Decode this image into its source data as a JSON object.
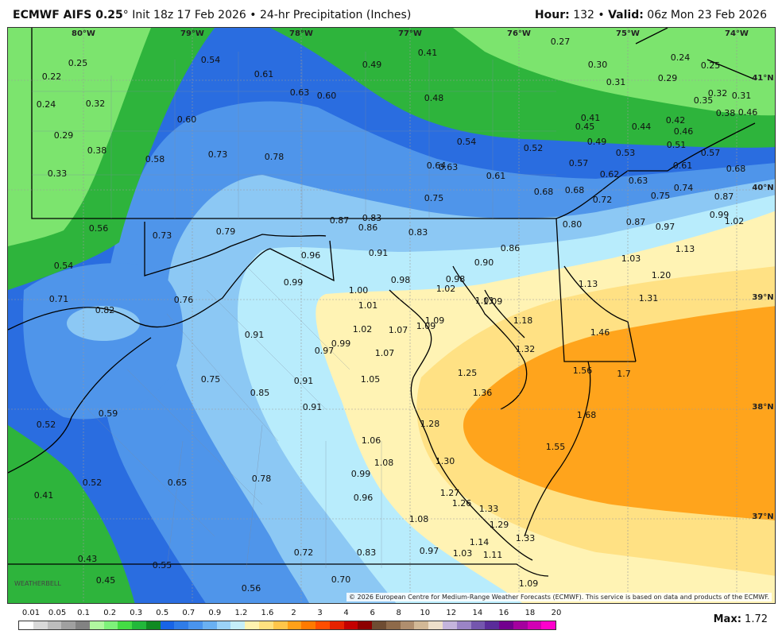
{
  "header": {
    "model": "ECMWF AIFS 0.25",
    "degree": "°",
    "init": "Init 18z 17 Feb 2026",
    "sep": "•",
    "product": "24-hr Precipitation (Inches)",
    "hour_label": "Hour:",
    "hour": "132",
    "valid_label": "Valid:",
    "valid": "06z Mon 23 Feb 2026"
  },
  "map": {
    "lon_ticks": [
      "80°W",
      "79°W",
      "78°W",
      "77°W",
      "76°W",
      "75°W",
      "74°W"
    ],
    "lat_ticks": [
      "41°N",
      "40°N",
      "39°N",
      "38°N",
      "37°N"
    ],
    "values": [
      [
        "0.22",
        55,
        62
      ],
      [
        "0.25",
        88,
        45
      ],
      [
        "0.24",
        48,
        97
      ],
      [
        "0.32",
        110,
        96
      ],
      [
        "0.29",
        70,
        136
      ],
      [
        "0.38",
        112,
        155
      ],
      [
        "0.33",
        62,
        184
      ],
      [
        "0.54",
        255,
        41
      ],
      [
        "0.61",
        322,
        59
      ],
      [
        "0.63",
        367,
        82
      ],
      [
        "0.60",
        401,
        86
      ],
      [
        "0.60",
        225,
        116
      ],
      [
        "0.58",
        185,
        166
      ],
      [
        "0.73",
        264,
        160
      ],
      [
        "0.78",
        335,
        163
      ],
      [
        "0.49",
        458,
        47
      ],
      [
        "0.41",
        528,
        32
      ],
      [
        "0.48",
        536,
        89
      ],
      [
        "0.27",
        695,
        18
      ],
      [
        "0.30",
        742,
        47
      ],
      [
        "0.24",
        846,
        38
      ],
      [
        "0.25",
        884,
        48
      ],
      [
        "0.31",
        765,
        69
      ],
      [
        "0.29",
        830,
        64
      ],
      [
        "0.32",
        893,
        83
      ],
      [
        "0.31",
        923,
        86
      ],
      [
        "0.35",
        875,
        92
      ],
      [
        "0.38",
        903,
        108
      ],
      [
        "0.46",
        931,
        107
      ],
      [
        "0.41",
        733,
        114
      ],
      [
        "0.45",
        726,
        125
      ],
      [
        "0.44",
        797,
        125
      ],
      [
        "0.42",
        840,
        117
      ],
      [
        "0.46",
        850,
        131
      ],
      [
        "0.54",
        577,
        144
      ],
      [
        "0.52",
        661,
        152
      ],
      [
        "0.49",
        741,
        144
      ],
      [
        "0.51",
        841,
        148
      ],
      [
        "0.53",
        777,
        158
      ],
      [
        "0.57",
        884,
        158
      ],
      [
        "0.57",
        718,
        171
      ],
      [
        "0.64",
        539,
        174
      ],
      [
        "0.63",
        554,
        176
      ],
      [
        "0.61",
        614,
        187
      ],
      [
        "0.62",
        757,
        185
      ],
      [
        "0.63",
        793,
        193
      ],
      [
        "0.61",
        849,
        174
      ],
      [
        "0.68",
        916,
        178
      ],
      [
        "0.74",
        850,
        202
      ],
      [
        "0.75",
        536,
        215
      ],
      [
        "0.68",
        674,
        207
      ],
      [
        "0.68",
        713,
        205
      ],
      [
        "0.72",
        748,
        217
      ],
      [
        "0.75",
        821,
        212
      ],
      [
        "0.87",
        901,
        213
      ],
      [
        "0.99",
        895,
        236
      ],
      [
        "1.02",
        914,
        244
      ],
      [
        "0.87",
        417,
        243
      ],
      [
        "0.83",
        458,
        240
      ],
      [
        "0.86",
        453,
        252
      ],
      [
        "0.83",
        516,
        258
      ],
      [
        "0.80",
        710,
        248
      ],
      [
        "0.87",
        790,
        245
      ],
      [
        "0.97",
        827,
        251
      ],
      [
        "0.56",
        114,
        253
      ],
      [
        "0.73",
        194,
        262
      ],
      [
        "0.79",
        274,
        257
      ],
      [
        "0.96",
        381,
        287
      ],
      [
        "0.91",
        466,
        284
      ],
      [
        "0.90",
        599,
        296
      ],
      [
        "0.86",
        632,
        278
      ],
      [
        "1.03",
        784,
        291
      ],
      [
        "1.13",
        852,
        279
      ],
      [
        "0.54",
        70,
        300
      ],
      [
        "0.99",
        359,
        321
      ],
      [
        "0.98",
        494,
        318
      ],
      [
        "0.98",
        563,
        317
      ],
      [
        "1.02",
        551,
        329
      ],
      [
        "1.00",
        441,
        331
      ],
      [
        "1.13",
        730,
        323
      ],
      [
        "1.20",
        822,
        312
      ],
      [
        "0.71",
        64,
        342
      ],
      [
        "0.82",
        122,
        356
      ],
      [
        "0.76",
        221,
        343
      ],
      [
        "1.01",
        453,
        350
      ],
      [
        "1.09",
        537,
        369
      ],
      [
        "1.09",
        526,
        376
      ],
      [
        "1.01",
        600,
        344
      ],
      [
        "1.09",
        610,
        345
      ],
      [
        "1.31",
        806,
        341
      ],
      [
        "1.18",
        648,
        369
      ],
      [
        "1.46",
        745,
        384
      ],
      [
        "0.91",
        310,
        387
      ],
      [
        "1.02",
        446,
        380
      ],
      [
        "1.07",
        491,
        381
      ],
      [
        "0.99",
        419,
        398
      ],
      [
        "0.97",
        398,
        407
      ],
      [
        "1.07",
        474,
        410
      ],
      [
        "1.32",
        651,
        405
      ],
      [
        "1.56",
        723,
        432
      ],
      [
        "1.7",
        775,
        436
      ],
      [
        "0.75",
        255,
        443
      ],
      [
        "0.91",
        372,
        445
      ],
      [
        "1.05",
        456,
        443
      ],
      [
        "1.25",
        578,
        435
      ],
      [
        "1.36",
        597,
        460
      ],
      [
        "0.85",
        317,
        460
      ],
      [
        "0.91",
        383,
        478
      ],
      [
        "1.68",
        728,
        488
      ],
      [
        "0.52",
        48,
        500
      ],
      [
        "0.59",
        126,
        486
      ],
      [
        "1.28",
        531,
        499
      ],
      [
        "1.06",
        457,
        520
      ],
      [
        "1.08",
        473,
        548
      ],
      [
        "1.30",
        550,
        546
      ],
      [
        "0.99",
        444,
        562
      ],
      [
        "1.55",
        689,
        528
      ],
      [
        "0.52",
        106,
        573
      ],
      [
        "0.65",
        213,
        573
      ],
      [
        "0.78",
        319,
        568
      ],
      [
        "0.96",
        447,
        592
      ],
      [
        "1.27",
        556,
        586
      ],
      [
        "1.26",
        571,
        599
      ],
      [
        "1.33",
        605,
        606
      ],
      [
        "0.41",
        45,
        589
      ],
      [
        "1.08",
        517,
        619
      ],
      [
        "1.29",
        618,
        626
      ],
      [
        "1.33",
        651,
        643
      ],
      [
        "1.14",
        593,
        648
      ],
      [
        "0.72",
        372,
        661
      ],
      [
        "0.83",
        451,
        661
      ],
      [
        "0.97",
        530,
        659
      ],
      [
        "1.03",
        572,
        662
      ],
      [
        "1.11",
        610,
        664
      ],
      [
        "0.43",
        100,
        669
      ],
      [
        "0.55",
        194,
        677
      ],
      [
        "0.45",
        123,
        696
      ],
      [
        "0.70",
        419,
        695
      ],
      [
        "0.56",
        306,
        706
      ],
      [
        "1.09",
        655,
        700
      ]
    ]
  },
  "copyright": "© 2026 European Centre for Medium-Range Weather Forecasts (ECMWF). This service is based on data and products of the ECMWF.",
  "logo_text": "WEATHERBELL",
  "legend": {
    "labels": [
      "0.01",
      "0.05",
      "0.1",
      "0.2",
      "0.3",
      "0.5",
      "0.7",
      "0.9",
      "1.2",
      "1.6",
      "2",
      "3",
      "4",
      "6",
      "8",
      "10",
      "12",
      "14",
      "16",
      "18",
      "20"
    ],
    "colors": [
      "#ffffff",
      "#d9d9d9",
      "#bdbdbd",
      "#a0a0a0",
      "#828282",
      "#b0f8a0",
      "#7ef27a",
      "#44dc44",
      "#22b83a",
      "#108a22",
      "#1864e6",
      "#2f7ce8",
      "#4a94ee",
      "#6ab0f2",
      "#9bd2f8",
      "#c5eefa",
      "#fff3b0",
      "#ffe180",
      "#ffc64a",
      "#ffa018",
      "#ff7a00",
      "#ff4e00",
      "#e62200",
      "#c40000",
      "#8c0000",
      "#6e4c32",
      "#8e6a4a",
      "#b08e6e",
      "#d2b896",
      "#eedfca",
      "#c4b4dc",
      "#9a84c6",
      "#7456ae",
      "#5a2c9a",
      "#72008e",
      "#a4009e",
      "#d200b4",
      "#ff00cc"
    ]
  },
  "max_label": "Max:",
  "max_value": "1.72",
  "colors": {
    "green_light": "#7ce46e",
    "green": "#2eb43c",
    "blue_dark": "#2a6de0",
    "blue_mid": "#4f95ea",
    "blue_light": "#8cc8f4",
    "cyan_light": "#b8ecfc",
    "yellow": "#fff3b4",
    "yellow_dark": "#ffe184",
    "orange": "#ffa41c"
  }
}
